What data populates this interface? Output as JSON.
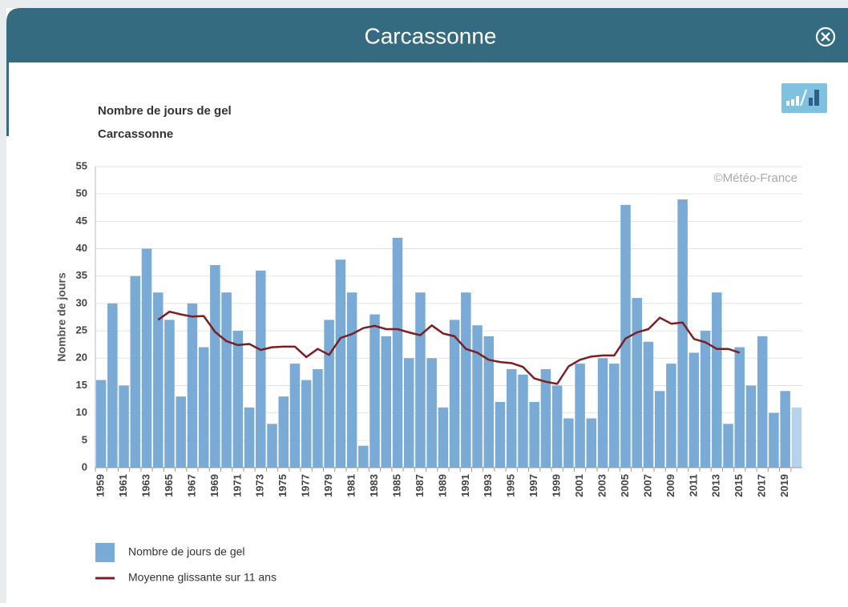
{
  "header": {
    "title": "Carcassonne"
  },
  "chart_data": {
    "type": "bar",
    "title": "Nombre de jours de gel",
    "subtitle": "Carcassonne",
    "credit": "©Météo-France",
    "y_label": "Nombre de jours",
    "categories": [
      "1959",
      null,
      "1961",
      null,
      "1963",
      null,
      "1965",
      null,
      "1967",
      null,
      "1969",
      null,
      "1971",
      null,
      "1973",
      null,
      "1975",
      null,
      "1977",
      null,
      "1979",
      null,
      "1981",
      null,
      "1983",
      null,
      "1985",
      null,
      "1987",
      null,
      "1989",
      null,
      "1991",
      null,
      "1993",
      null,
      "1995",
      null,
      "1997",
      null,
      "1999",
      null,
      "2001",
      null,
      "2003",
      null,
      "2005",
      null,
      "2007",
      null,
      "2009",
      null,
      "2011",
      null,
      "2013",
      null,
      "2015",
      null,
      "2017",
      null,
      "2019",
      null
    ],
    "series": [
      {
        "name": "Nombre de jours de gel",
        "type": "bar",
        "color": "#7aaad6",
        "last_color": "#b6d3ec",
        "values": [
          16,
          30,
          15,
          35,
          40,
          32,
          27,
          13,
          30,
          22,
          37,
          32,
          25,
          11,
          36,
          8,
          13,
          19,
          16,
          18,
          27,
          38,
          32,
          4,
          28,
          24,
          42,
          20,
          32,
          20,
          11,
          27,
          32,
          26,
          24,
          12,
          18,
          17,
          12,
          18,
          15,
          9,
          19,
          9,
          20,
          19,
          48,
          31,
          23,
          14,
          19,
          49,
          21,
          25,
          32,
          8,
          22,
          15,
          24,
          10,
          14,
          11
        ]
      },
      {
        "name": "Moyenne glissante sur 11 ans",
        "type": "line",
        "color": "#7b1f24",
        "values": [
          null,
          null,
          null,
          null,
          null,
          27.0,
          28.5,
          28.0,
          27.6,
          27.7,
          24.8,
          23.1,
          22.4,
          22.6,
          21.5,
          22.0,
          22.1,
          22.1,
          20.2,
          21.7,
          20.6,
          23.7,
          24.4,
          25.5,
          25.9,
          25.3,
          25.3,
          24.7,
          24.2,
          26.0,
          24.5,
          24.0,
          21.7,
          21.0,
          19.7,
          19.3,
          19.1,
          18.4,
          16.3,
          15.7,
          15.3,
          18.5,
          19.7,
          20.3,
          20.5,
          20.5,
          23.6,
          24.7,
          25.3,
          27.4,
          26.3,
          26.5,
          23.5,
          22.9,
          21.7,
          21.7,
          21.0,
          null,
          null,
          null,
          null,
          null
        ]
      }
    ],
    "ylim": [
      0,
      55
    ],
    "yticks": [
      0,
      5,
      10,
      15,
      20,
      25,
      30,
      35,
      40,
      45,
      50,
      55
    ],
    "grid": true
  }
}
